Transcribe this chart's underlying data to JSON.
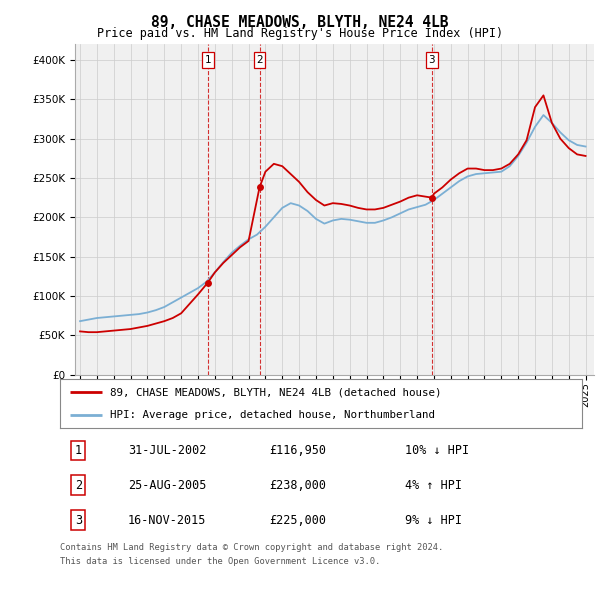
{
  "title": "89, CHASE MEADOWS, BLYTH, NE24 4LB",
  "subtitle": "Price paid vs. HM Land Registry's House Price Index (HPI)",
  "ylim": [
    0,
    420000
  ],
  "yticks": [
    0,
    50000,
    100000,
    150000,
    200000,
    250000,
    300000,
    350000,
    400000
  ],
  "ytick_labels": [
    "£0",
    "£50K",
    "£100K",
    "£150K",
    "£200K",
    "£250K",
    "£300K",
    "£350K",
    "£400K"
  ],
  "legend_line1": "89, CHASE MEADOWS, BLYTH, NE24 4LB (detached house)",
  "legend_line2": "HPI: Average price, detached house, Northumberland",
  "transactions": [
    {
      "num": 1,
      "date": "31-JUL-2002",
      "price": "£116,950",
      "hpi": "10% ↓ HPI",
      "year": 2002.58
    },
    {
      "num": 2,
      "date": "25-AUG-2005",
      "price": "£238,000",
      "hpi": "4% ↑ HPI",
      "year": 2005.65
    },
    {
      "num": 3,
      "date": "16-NOV-2015",
      "price": "£225,000",
      "hpi": "9% ↓ HPI",
      "year": 2015.88
    }
  ],
  "transaction_prices": [
    116950,
    238000,
    225000
  ],
  "footnote1": "Contains HM Land Registry data © Crown copyright and database right 2024.",
  "footnote2": "This data is licensed under the Open Government Licence v3.0.",
  "price_color": "#cc0000",
  "hpi_color": "#7bafd4",
  "grid_color": "#cccccc",
  "bg_color": "#f0f0f0",
  "vline_color": "#cc0000",
  "years_hpi": [
    1995,
    1995.5,
    1996,
    1996.5,
    1997,
    1997.5,
    1998,
    1998.5,
    1999,
    1999.5,
    2000,
    2000.5,
    2001,
    2001.5,
    2002,
    2002.5,
    2003,
    2003.5,
    2004,
    2004.5,
    2005,
    2005.5,
    2006,
    2006.5,
    2007,
    2007.5,
    2008,
    2008.5,
    2009,
    2009.5,
    2010,
    2010.5,
    2011,
    2011.5,
    2012,
    2012.5,
    2013,
    2013.5,
    2014,
    2014.5,
    2015,
    2015.5,
    2016,
    2016.5,
    2017,
    2017.5,
    2018,
    2018.5,
    2019,
    2019.5,
    2020,
    2020.5,
    2021,
    2021.5,
    2022,
    2022.5,
    2023,
    2023.5,
    2024,
    2024.5,
    2025
  ],
  "hpi_values": [
    68000,
    70000,
    72000,
    73000,
    74000,
    75000,
    76000,
    77000,
    79000,
    82000,
    86000,
    92000,
    98000,
    104000,
    110000,
    118000,
    130000,
    143000,
    155000,
    164000,
    172000,
    178000,
    188000,
    200000,
    212000,
    218000,
    215000,
    208000,
    198000,
    192000,
    196000,
    198000,
    197000,
    195000,
    193000,
    193000,
    196000,
    200000,
    205000,
    210000,
    213000,
    216000,
    222000,
    230000,
    238000,
    246000,
    252000,
    255000,
    256000,
    257000,
    258000,
    265000,
    278000,
    295000,
    315000,
    330000,
    320000,
    308000,
    298000,
    292000,
    290000
  ],
  "price_paid_years": [
    1995,
    1995.5,
    1996,
    1996.5,
    1997,
    1997.5,
    1998,
    1998.5,
    1999,
    1999.5,
    2000,
    2000.5,
    2001,
    2001.5,
    2002,
    2002.58,
    2003,
    2003.5,
    2004,
    2004.5,
    2005,
    2005.65,
    2006,
    2006.5,
    2007,
    2007.5,
    2008,
    2008.5,
    2009,
    2009.5,
    2010,
    2010.5,
    2011,
    2011.5,
    2012,
    2012.5,
    2013,
    2013.5,
    2014,
    2014.5,
    2015,
    2015.88,
    2016,
    2016.5,
    2017,
    2017.5,
    2018,
    2018.5,
    2019,
    2019.5,
    2020,
    2020.5,
    2021,
    2021.5,
    2022,
    2022.5,
    2023,
    2023.5,
    2024,
    2024.5,
    2025
  ],
  "price_paid_values": [
    55000,
    54000,
    54000,
    55000,
    56000,
    57000,
    58000,
    60000,
    62000,
    65000,
    68000,
    72000,
    78000,
    90000,
    102000,
    116950,
    130000,
    142000,
    152000,
    162000,
    170000,
    238000,
    258000,
    268000,
    265000,
    255000,
    245000,
    232000,
    222000,
    215000,
    218000,
    217000,
    215000,
    212000,
    210000,
    210000,
    212000,
    216000,
    220000,
    225000,
    228000,
    225000,
    230000,
    238000,
    248000,
    256000,
    262000,
    262000,
    260000,
    260000,
    262000,
    268000,
    280000,
    298000,
    340000,
    355000,
    320000,
    300000,
    288000,
    280000,
    278000
  ]
}
